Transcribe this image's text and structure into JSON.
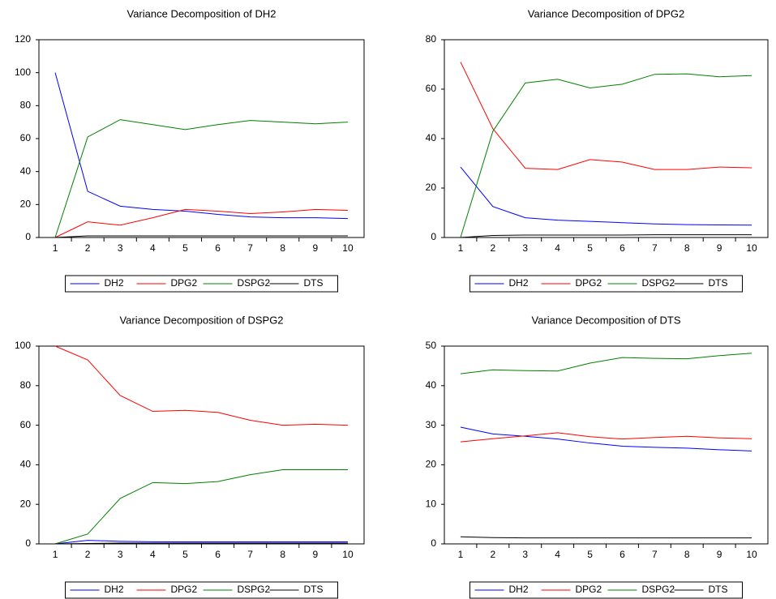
{
  "chart_data": [
    {
      "type": "line",
      "title": "Variance Decomposition of DH2",
      "categories": [
        "1",
        "2",
        "3",
        "4",
        "5",
        "6",
        "7",
        "8",
        "9",
        "10"
      ],
      "ylim": [
        0,
        120
      ],
      "yticks": [
        0,
        20,
        40,
        60,
        80,
        100,
        120
      ],
      "legend": "bottom",
      "series": [
        {
          "name": "DH2",
          "color": "#0000ff",
          "values": [
            100,
            28,
            19,
            17,
            16,
            14,
            12.5,
            12,
            12,
            11.5
          ]
        },
        {
          "name": "DPG2",
          "color": "#ff0000",
          "values": [
            0,
            9.5,
            7.5,
            12,
            17,
            16,
            14.5,
            15.5,
            17,
            16.5
          ]
        },
        {
          "name": "DSPG2",
          "color": "#008000",
          "values": [
            0,
            61,
            71.5,
            68.5,
            65.5,
            68.5,
            71,
            70,
            69,
            70
          ]
        },
        {
          "name": "DTS",
          "color": "#000000",
          "values": [
            0,
            1,
            1,
            1,
            1,
            1,
            1,
            1,
            1,
            1
          ]
        }
      ]
    },
    {
      "type": "line",
      "title": "Variance Decomposition of DPG2",
      "categories": [
        "1",
        "2",
        "3",
        "4",
        "5",
        "6",
        "7",
        "8",
        "9",
        "10"
      ],
      "ylim": [
        0,
        80
      ],
      "yticks": [
        0,
        20,
        40,
        60,
        80
      ],
      "legend": "bottom",
      "series": [
        {
          "name": "DH2",
          "color": "#0000ff",
          "values": [
            28.5,
            12.5,
            8,
            7,
            6.5,
            6,
            5.5,
            5.2,
            5.1,
            5
          ]
        },
        {
          "name": "DPG2",
          "color": "#ff0000",
          "values": [
            71,
            44,
            28,
            27.5,
            31.5,
            30.5,
            27.5,
            27.5,
            28.5,
            28.2
          ]
        },
        {
          "name": "DSPG2",
          "color": "#008000",
          "values": [
            0,
            43,
            62.5,
            64,
            60.5,
            62,
            66,
            66.2,
            65,
            65.5
          ]
        },
        {
          "name": "DTS",
          "color": "#000000",
          "values": [
            0,
            0.8,
            1,
            1,
            1,
            1,
            1.1,
            1.1,
            1.1,
            1.1
          ]
        }
      ]
    },
    {
      "type": "line",
      "title": "Variance Decomposition of DSPG2",
      "categories": [
        "1",
        "2",
        "3",
        "4",
        "5",
        "6",
        "7",
        "8",
        "9",
        "10"
      ],
      "ylim": [
        0,
        100
      ],
      "yticks": [
        0,
        20,
        40,
        60,
        80,
        100
      ],
      "legend": "bottom",
      "series": [
        {
          "name": "DH2",
          "color": "#0000ff",
          "values": [
            0,
            1.8,
            1.3,
            1.1,
            1,
            1,
            1,
            1,
            1,
            1
          ]
        },
        {
          "name": "DPG2",
          "color": "#ff0000",
          "values": [
            100,
            93,
            75,
            67,
            67.5,
            66.5,
            62.5,
            60,
            60.5,
            60
          ]
        },
        {
          "name": "DSPG2",
          "color": "#008000",
          "values": [
            0,
            5,
            23,
            31,
            30.5,
            31.5,
            35,
            37.5,
            37.5,
            37.5
          ]
        },
        {
          "name": "DTS",
          "color": "#000000",
          "values": [
            0,
            0.2,
            0.4,
            0.4,
            0.4,
            0.4,
            0.4,
            0.4,
            0.4,
            0.4
          ]
        }
      ]
    },
    {
      "type": "line",
      "title": "Variance Decomposition of DTS",
      "categories": [
        "1",
        "2",
        "3",
        "4",
        "5",
        "6",
        "7",
        "8",
        "9",
        "10"
      ],
      "ylim": [
        0,
        50
      ],
      "yticks": [
        0,
        10,
        20,
        30,
        40,
        50
      ],
      "legend": "bottom",
      "series": [
        {
          "name": "DH2",
          "color": "#0000ff",
          "values": [
            29.5,
            27.8,
            27.2,
            26.5,
            25.5,
            24.7,
            24.4,
            24.2,
            23.8,
            23.5
          ]
        },
        {
          "name": "DPG2",
          "color": "#ff0000",
          "values": [
            25.8,
            26.6,
            27.3,
            28.1,
            27.1,
            26.5,
            26.9,
            27.2,
            26.8,
            26.6
          ]
        },
        {
          "name": "DSPG2",
          "color": "#008000",
          "values": [
            43,
            44,
            43.8,
            43.7,
            45.7,
            47.1,
            46.9,
            46.8,
            47.6,
            48.2
          ]
        },
        {
          "name": "DTS",
          "color": "#000000",
          "values": [
            1.8,
            1.6,
            1.5,
            1.5,
            1.5,
            1.5,
            1.5,
            1.5,
            1.5,
            1.5
          ]
        }
      ]
    }
  ]
}
